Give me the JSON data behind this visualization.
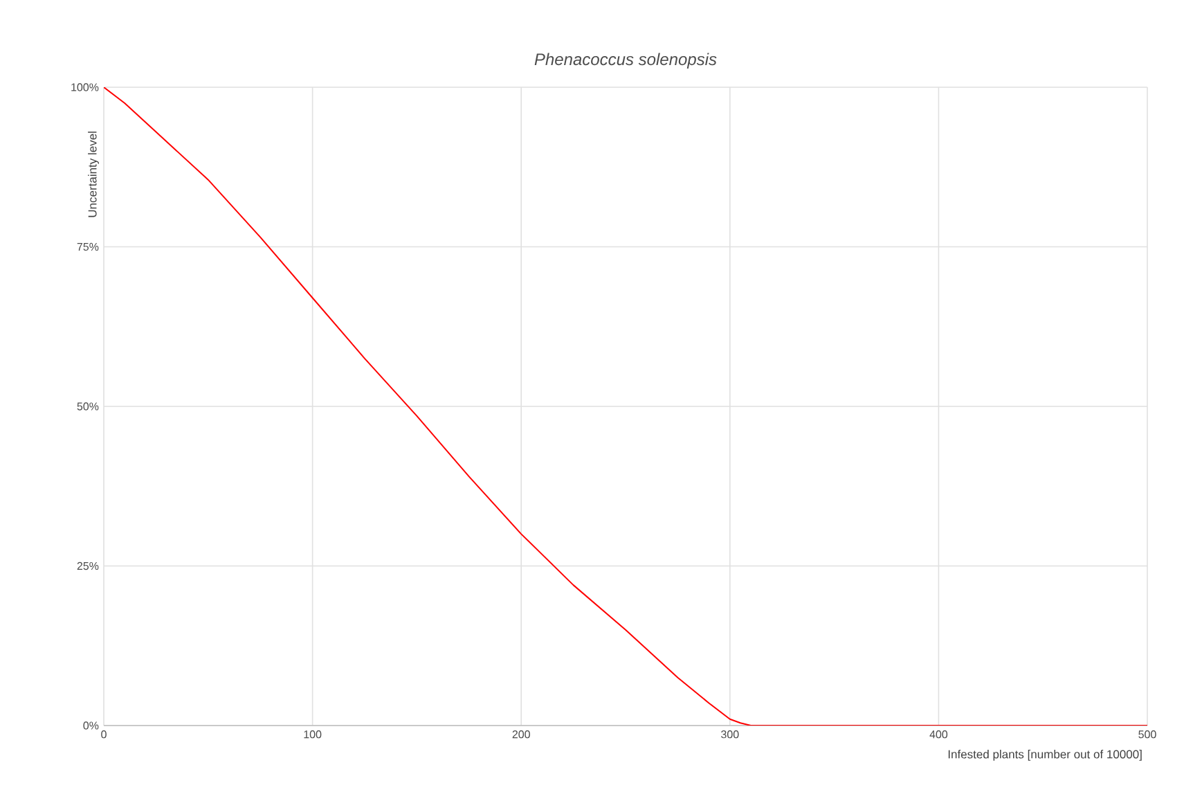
{
  "chart_data": {
    "type": "line",
    "title": "Phenacoccus solenopsis",
    "xlabel": "Infested plants [number out of 10000]",
    "ylabel": "Uncertainty level",
    "x": [
      0,
      10,
      25,
      50,
      75,
      100,
      125,
      150,
      175,
      200,
      225,
      250,
      275,
      290,
      300,
      305,
      310,
      350,
      400,
      450,
      500
    ],
    "series": [
      {
        "color": "#ff0000",
        "values": [
          100,
          97.5,
          93,
          85.5,
          76.5,
          67,
          57.5,
          48.5,
          39,
          30,
          22,
          15,
          7.5,
          3.5,
          1,
          0.4,
          0,
          0,
          0,
          0,
          0
        ]
      }
    ],
    "xlim": [
      0,
      500
    ],
    "ylim": [
      0,
      100
    ],
    "xticks": [
      0,
      100,
      200,
      300,
      400,
      500
    ],
    "yticks": [
      {
        "value": 0,
        "label": "0%"
      },
      {
        "value": 25,
        "label": "25%"
      },
      {
        "value": 50,
        "label": "50%"
      },
      {
        "value": 75,
        "label": "75%"
      },
      {
        "value": 100,
        "label": "100%"
      }
    ],
    "grid": true,
    "marker": "none",
    "line_style": "solid"
  }
}
